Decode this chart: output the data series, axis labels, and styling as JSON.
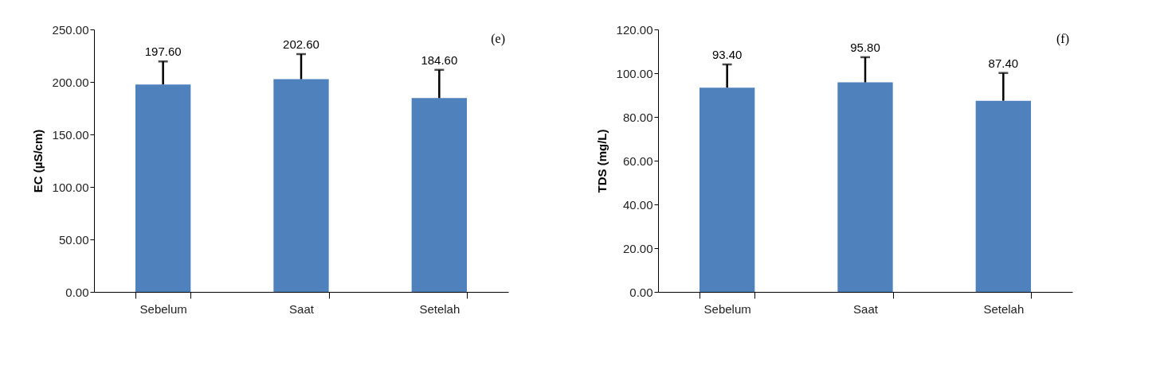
{
  "chart_data": [
    {
      "type": "bar",
      "categories": [
        "Sebelum",
        "Saat",
        "Setelah"
      ],
      "values": [
        197.6,
        202.6,
        184.6
      ],
      "color": "#4f81bd",
      "errors": [
        [
          197.6,
          219.5
        ],
        [
          202.6,
          226.5
        ],
        [
          184.6,
          211.5
        ]
      ],
      "value_labels": [
        "197.60",
        "202.60",
        "184.60"
      ],
      "ylabel": "EC (µS/cm)",
      "ylim": [
        0,
        250
      ],
      "yticks": [
        {
          "value": 0,
          "label": "0.00"
        },
        {
          "value": 50,
          "label": "50.00"
        },
        {
          "value": 100,
          "label": "100.00"
        },
        {
          "value": 150,
          "label": "150.00"
        },
        {
          "value": 200,
          "label": "200.00"
        },
        {
          "value": 250,
          "label": "250.00"
        }
      ],
      "annotations": [
        "(e)"
      ]
    },
    {
      "type": "bar",
      "categories": [
        "Sebelum",
        "Saat",
        "Setelah"
      ],
      "values": [
        93.4,
        95.8,
        87.4
      ],
      "color": "#4f81bd",
      "errors": [
        [
          93.4,
          104.0
        ],
        [
          95.8,
          107.3
        ],
        [
          87.4,
          100.1
        ]
      ],
      "value_labels": [
        "93.40",
        "95.80",
        "87.40"
      ],
      "ylabel": "TDS (mg/L)",
      "ylim": [
        0,
        120
      ],
      "yticks": [
        {
          "value": 0,
          "label": "0.00"
        },
        {
          "value": 20,
          "label": "20.00"
        },
        {
          "value": 40,
          "label": "40.00"
        },
        {
          "value": 60,
          "label": "60.00"
        },
        {
          "value": 80,
          "label": "80.00"
        },
        {
          "value": 100,
          "label": "100.00"
        },
        {
          "value": 120,
          "label": "120.00"
        }
      ],
      "annotations": [
        "(f)"
      ]
    }
  ]
}
